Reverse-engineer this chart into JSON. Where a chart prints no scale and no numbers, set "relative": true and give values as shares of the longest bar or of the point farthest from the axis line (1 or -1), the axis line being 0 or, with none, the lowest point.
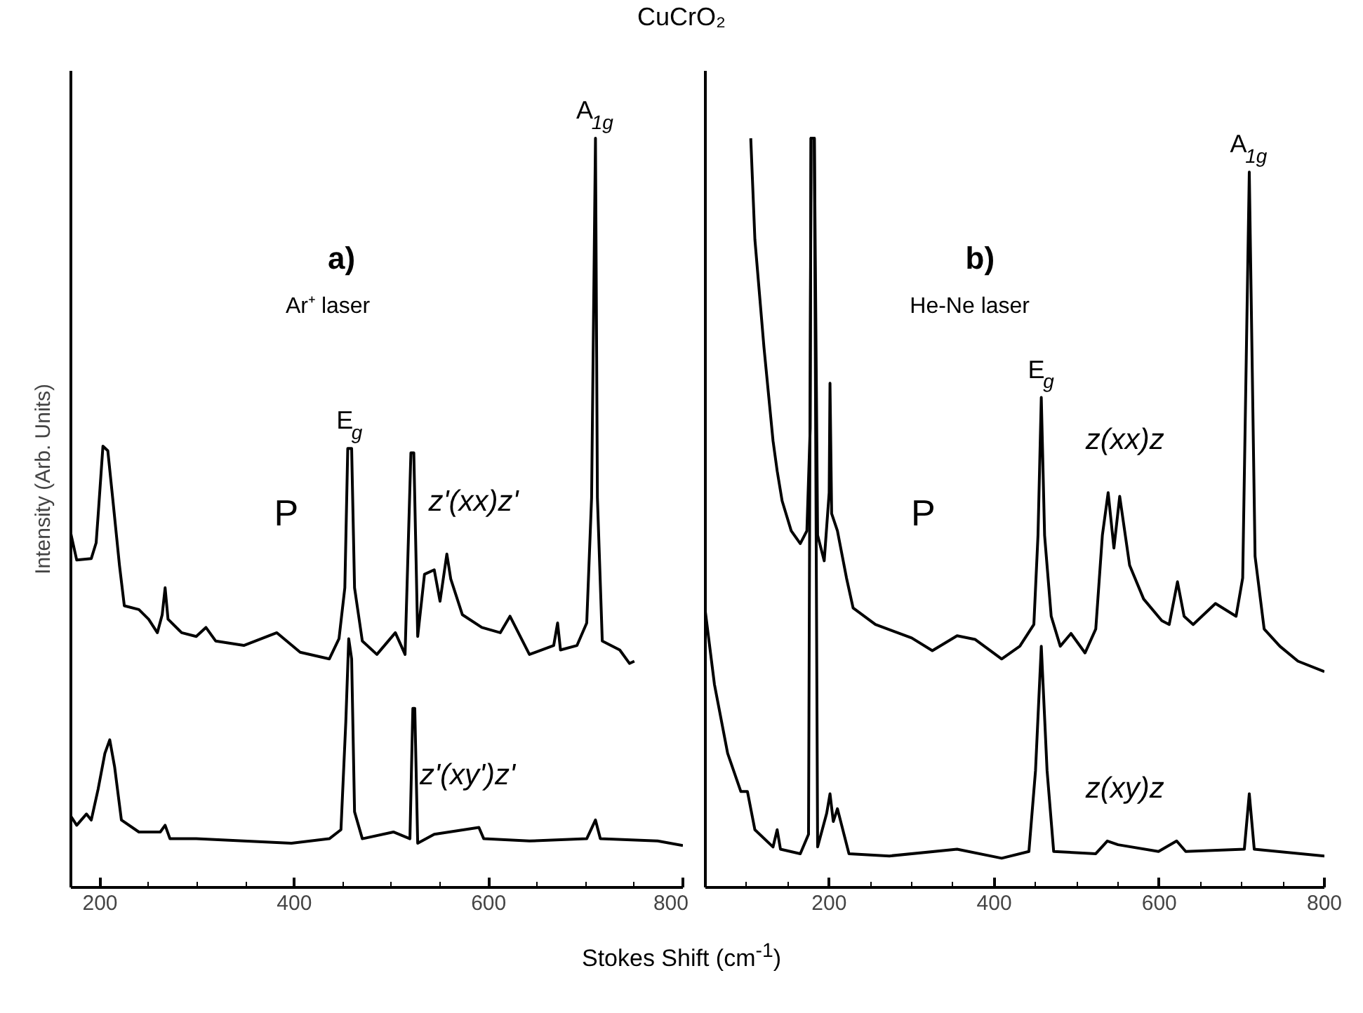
{
  "chart_data": [
    {
      "type": "line",
      "title": "CuCrO₂",
      "ylabel": "Intensity (Arb. Units)",
      "relative": true,
      "xlim": [
        170,
        800
      ],
      "xticks": [
        200,
        {
          "value": 250,
          "label": null
        },
        {
          "value": 300,
          "label": null
        },
        {
          "value": 350,
          "label": null
        },
        400,
        {
          "value": 450,
          "label": null
        },
        {
          "value": 500,
          "label": null
        },
        {
          "value": 550,
          "label": null
        },
        600,
        {
          "value": 650,
          "label": null
        },
        {
          "value": 700,
          "label": null
        },
        {
          "value": 750,
          "label": null
        },
        800
      ],
      "annotations": [
        "a)",
        "Ar⁺ laser",
        {
          "text": "A$_{1g}$",
          "x": 710,
          "y": 1.0
        },
        {
          "text": "E$_{g}$",
          "x": 457,
          "y": 0.586
        },
        "P"
      ],
      "series": [
        {
          "name": "z'(xx)z'",
          "color": "#000000",
          "x": [
            170,
            176,
            191,
            196,
            198,
            203,
            208,
            213,
            220,
            225,
            240,
            250,
            259,
            264,
            267,
            270,
            284,
            299,
            309,
            319,
            348,
            382,
            406,
            436,
            446,
            452,
            455,
            459,
            462,
            470,
            485,
            504,
            514,
            520,
            523,
            527,
            534,
            544,
            550,
            557,
            561,
            573,
            593,
            612,
            622,
            642,
            667,
            671,
            674,
            691,
            701,
            706,
            710,
            712,
            717,
            735,
            745,
            750
          ],
          "values": [
            0.472,
            0.437,
            0.439,
            0.46,
            0.496,
            0.589,
            0.583,
            0.52,
            0.43,
            0.376,
            0.371,
            0.358,
            0.34,
            0.364,
            0.4,
            0.358,
            0.34,
            0.335,
            0.347,
            0.329,
            0.323,
            0.34,
            0.314,
            0.305,
            0.332,
            0.4,
            0.586,
            0.586,
            0.4,
            0.329,
            0.311,
            0.34,
            0.311,
            0.58,
            0.58,
            0.335,
            0.418,
            0.424,
            0.382,
            0.445,
            0.412,
            0.364,
            0.347,
            0.34,
            0.362,
            0.311,
            0.323,
            0.353,
            0.317,
            0.323,
            0.353,
            0.52,
            1.0,
            0.52,
            0.329,
            0.317,
            0.299,
            0.302
          ]
        },
        {
          "name": "z'(xy')z'",
          "color": "#000000",
          "x": [
            170,
            176,
            186,
            191,
            198,
            205,
            210,
            215,
            222,
            240,
            262,
            267,
            272,
            299,
            348,
            397,
            436,
            448,
            453,
            456,
            459,
            462,
            470,
            502,
            519,
            522,
            524,
            527,
            544,
            590,
            595,
            642,
            701,
            710,
            715,
            774,
            800
          ],
          "values": [
            0.095,
            0.083,
            0.098,
            0.09,
            0.131,
            0.179,
            0.197,
            0.161,
            0.09,
            0.074,
            0.074,
            0.083,
            0.065,
            0.065,
            0.062,
            0.059,
            0.065,
            0.077,
            0.221,
            0.332,
            0.305,
            0.101,
            0.065,
            0.074,
            0.065,
            0.239,
            0.239,
            0.059,
            0.071,
            0.08,
            0.065,
            0.062,
            0.065,
            0.09,
            0.065,
            0.062,
            0.056
          ]
        }
      ]
    },
    {
      "type": "line",
      "xlabel": "Stokes Shift (cm$^{-1}$)",
      "relative": true,
      "xlim": [
        50,
        800
      ],
      "xticks": [
        {
          "value": 100,
          "label": null
        },
        {
          "value": 150,
          "label": null
        },
        200,
        {
          "value": 250,
          "label": null
        },
        {
          "value": 300,
          "label": null
        },
        {
          "value": 350,
          "label": null
        },
        400,
        {
          "value": 450,
          "label": null
        },
        {
          "value": 500,
          "label": null
        },
        {
          "value": 550,
          "label": null
        },
        600,
        {
          "value": 650,
          "label": null
        },
        {
          "value": 700,
          "label": null
        },
        {
          "value": 750,
          "label": null
        },
        800
      ],
      "annotations": [
        "b)",
        "He-Ne laser",
        {
          "text": "A$_{1g}$",
          "x": 709,
          "y": 0.955
        },
        {
          "text": "E$_{g}$",
          "x": 457,
          "y": 0.654
        },
        "P"
      ],
      "series": [
        {
          "name": "z(xx)z",
          "color": "#000000",
          "x": [
            105,
            110,
            121,
            132,
            137,
            143,
            154,
            165,
            173,
            177,
            178,
            182,
            186,
            194,
            200,
            201,
            203,
            210,
            221,
            229,
            256,
            300,
            325,
            355,
            377,
            409,
            431,
            448,
            453,
            457,
            461,
            469,
            480,
            493,
            510,
            523,
            531,
            538,
            545,
            552,
            564,
            581,
            603,
            612,
            622,
            630,
            641,
            668,
            693,
            701,
            709,
            716,
            727,
            746,
            768,
            800
          ],
          "values": [
            1.0,
            0.865,
            0.721,
            0.596,
            0.556,
            0.516,
            0.476,
            0.459,
            0.476,
            0.613,
            1.0,
            1.0,
            0.47,
            0.436,
            0.527,
            0.673,
            0.499,
            0.476,
            0.413,
            0.373,
            0.351,
            0.333,
            0.316,
            0.336,
            0.331,
            0.305,
            0.322,
            0.351,
            0.47,
            0.654,
            0.47,
            0.362,
            0.322,
            0.339,
            0.313,
            0.345,
            0.47,
            0.527,
            0.453,
            0.522,
            0.43,
            0.385,
            0.356,
            0.351,
            0.408,
            0.362,
            0.351,
            0.379,
            0.362,
            0.413,
            0.955,
            0.442,
            0.345,
            0.322,
            0.302,
            0.288
          ]
        },
        {
          "name": "z(xy)z",
          "color": "#000000",
          "x": [
            50,
            61,
            77,
            93,
            101,
            110,
            132,
            137,
            141,
            165,
            175,
            178,
            182,
            186,
            197,
            201,
            205,
            210,
            224,
            273,
            355,
            409,
            442,
            450,
            457,
            464,
            472,
            523,
            537,
            550,
            599,
            621,
            632,
            703,
            709,
            715,
            800
          ],
          "values": [
            0.368,
            0.271,
            0.179,
            0.128,
            0.128,
            0.077,
            0.054,
            0.077,
            0.051,
            0.045,
            0.071,
            1.0,
            1.0,
            0.054,
            0.099,
            0.125,
            0.088,
            0.105,
            0.045,
            0.042,
            0.051,
            0.039,
            0.048,
            0.156,
            0.322,
            0.156,
            0.048,
            0.045,
            0.062,
            0.057,
            0.048,
            0.062,
            0.048,
            0.051,
            0.125,
            0.051,
            0.042
          ]
        }
      ]
    }
  ]
}
